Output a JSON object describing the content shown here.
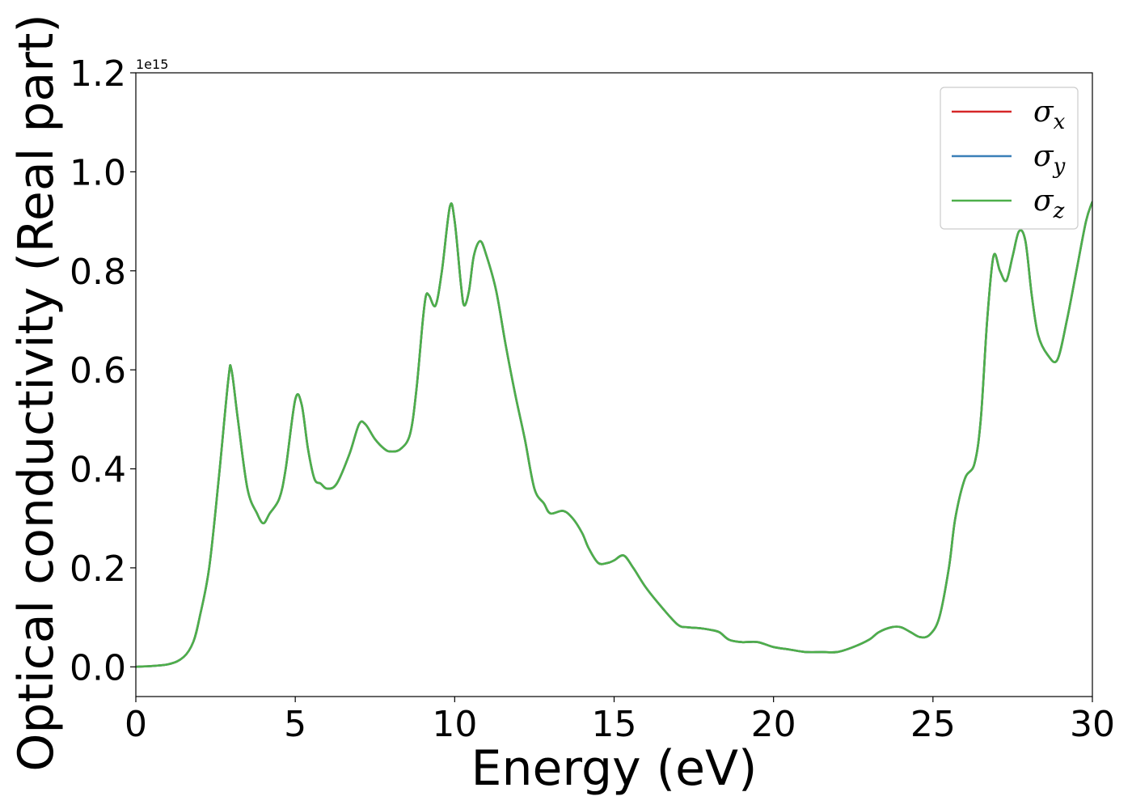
{
  "chart_data": {
    "type": "line",
    "xlabel": "Energy (eV)",
    "ylabel": "Optical conductivity (Real part)",
    "y_offset_label": "1e15",
    "xlim": [
      0,
      30
    ],
    "ylim": [
      -0.06,
      1.2
    ],
    "xticks": [
      0,
      5,
      10,
      15,
      20,
      25,
      30
    ],
    "xtick_labels": [
      "0",
      "5",
      "10",
      "15",
      "20",
      "25",
      "30"
    ],
    "yticks": [
      0.0,
      0.2,
      0.4,
      0.6,
      0.8,
      1.0,
      1.2
    ],
    "ytick_labels": [
      "0.0",
      "0.2",
      "0.4",
      "0.6",
      "0.8",
      "1.0",
      "1.2"
    ],
    "grid": false,
    "legend_position": "top-right",
    "series": [
      {
        "name": "σx",
        "symbol": "σ",
        "subscript": "x",
        "color": "#d62728",
        "x": [
          0,
          1,
          1.5,
          1.8,
          2.0,
          2.3,
          2.6,
          2.9,
          3.0,
          3.2,
          3.5,
          3.8,
          4.0,
          4.2,
          4.5,
          4.7,
          5.0,
          5.2,
          5.4,
          5.6,
          5.8,
          6.0,
          6.3,
          6.7,
          7.0,
          7.2,
          7.5,
          7.8,
          8.0,
          8.3,
          8.6,
          8.8,
          9.0,
          9.1,
          9.2,
          9.4,
          9.6,
          9.85,
          10.0,
          10.2,
          10.3,
          10.45,
          10.6,
          10.8,
          11.0,
          11.3,
          11.6,
          11.9,
          12.2,
          12.5,
          12.8,
          13.0,
          13.4,
          13.7,
          14.0,
          14.2,
          14.5,
          14.8,
          15.0,
          15.3,
          15.6,
          16.0,
          16.5,
          17.0,
          17.3,
          17.7,
          18.0,
          18.3,
          18.6,
          19.0,
          19.5,
          20.0,
          20.5,
          21.0,
          21.5,
          22.0,
          22.5,
          23.0,
          23.3,
          23.7,
          24.0,
          24.3,
          24.6,
          24.9,
          25.2,
          25.5,
          25.7,
          26.0,
          26.3,
          26.5,
          26.7,
          26.9,
          27.1,
          27.3,
          27.5,
          27.7,
          27.9,
          28.1,
          28.3,
          28.6,
          28.9,
          29.2,
          29.5,
          29.8,
          30.0
        ],
        "y": [
          0.0,
          0.005,
          0.02,
          0.05,
          0.1,
          0.2,
          0.38,
          0.58,
          0.6,
          0.5,
          0.36,
          0.31,
          0.29,
          0.31,
          0.34,
          0.4,
          0.54,
          0.53,
          0.44,
          0.38,
          0.37,
          0.36,
          0.37,
          0.43,
          0.49,
          0.49,
          0.46,
          0.44,
          0.435,
          0.44,
          0.47,
          0.56,
          0.7,
          0.75,
          0.75,
          0.73,
          0.8,
          0.93,
          0.9,
          0.77,
          0.73,
          0.76,
          0.83,
          0.86,
          0.83,
          0.76,
          0.65,
          0.55,
          0.46,
          0.36,
          0.33,
          0.31,
          0.315,
          0.3,
          0.27,
          0.24,
          0.21,
          0.21,
          0.215,
          0.225,
          0.2,
          0.16,
          0.12,
          0.085,
          0.08,
          0.078,
          0.075,
          0.07,
          0.055,
          0.05,
          0.05,
          0.04,
          0.035,
          0.03,
          0.03,
          0.03,
          0.04,
          0.055,
          0.07,
          0.08,
          0.08,
          0.07,
          0.06,
          0.065,
          0.1,
          0.2,
          0.3,
          0.38,
          0.41,
          0.5,
          0.7,
          0.83,
          0.8,
          0.78,
          0.83,
          0.88,
          0.86,
          0.75,
          0.67,
          0.63,
          0.62,
          0.7,
          0.8,
          0.9,
          0.94
        ]
      },
      {
        "name": "σy",
        "symbol": "σ",
        "subscript": "y",
        "color": "#3a7fb8",
        "x": [
          0,
          1,
          1.5,
          1.8,
          2.0,
          2.3,
          2.6,
          2.9,
          3.0,
          3.2,
          3.5,
          3.8,
          4.0,
          4.2,
          4.5,
          4.7,
          5.0,
          5.2,
          5.4,
          5.6,
          5.8,
          6.0,
          6.3,
          6.7,
          7.0,
          7.2,
          7.5,
          7.8,
          8.0,
          8.3,
          8.6,
          8.8,
          9.0,
          9.1,
          9.2,
          9.4,
          9.6,
          9.85,
          10.0,
          10.2,
          10.3,
          10.45,
          10.6,
          10.8,
          11.0,
          11.3,
          11.6,
          11.9,
          12.2,
          12.5,
          12.8,
          13.0,
          13.4,
          13.7,
          14.0,
          14.2,
          14.5,
          14.8,
          15.0,
          15.3,
          15.6,
          16.0,
          16.5,
          17.0,
          17.3,
          17.7,
          18.0,
          18.3,
          18.6,
          19.0,
          19.5,
          20.0,
          20.5,
          21.0,
          21.5,
          22.0,
          22.5,
          23.0,
          23.3,
          23.7,
          24.0,
          24.3,
          24.6,
          24.9,
          25.2,
          25.5,
          25.7,
          26.0,
          26.3,
          26.5,
          26.7,
          26.9,
          27.1,
          27.3,
          27.5,
          27.7,
          27.9,
          28.1,
          28.3,
          28.6,
          28.9,
          29.2,
          29.5,
          29.8,
          30.0
        ],
        "y": [
          0.0,
          0.005,
          0.02,
          0.05,
          0.1,
          0.2,
          0.38,
          0.58,
          0.6,
          0.5,
          0.36,
          0.31,
          0.29,
          0.31,
          0.34,
          0.4,
          0.54,
          0.53,
          0.44,
          0.38,
          0.37,
          0.36,
          0.37,
          0.43,
          0.49,
          0.49,
          0.46,
          0.44,
          0.435,
          0.44,
          0.47,
          0.56,
          0.7,
          0.75,
          0.75,
          0.73,
          0.8,
          0.93,
          0.9,
          0.77,
          0.73,
          0.76,
          0.83,
          0.86,
          0.83,
          0.76,
          0.65,
          0.55,
          0.46,
          0.36,
          0.33,
          0.31,
          0.315,
          0.3,
          0.27,
          0.24,
          0.21,
          0.21,
          0.215,
          0.225,
          0.2,
          0.16,
          0.12,
          0.085,
          0.08,
          0.078,
          0.075,
          0.07,
          0.055,
          0.05,
          0.05,
          0.04,
          0.035,
          0.03,
          0.03,
          0.03,
          0.04,
          0.055,
          0.07,
          0.08,
          0.08,
          0.07,
          0.06,
          0.065,
          0.1,
          0.2,
          0.3,
          0.38,
          0.41,
          0.5,
          0.7,
          0.83,
          0.8,
          0.78,
          0.83,
          0.88,
          0.86,
          0.75,
          0.67,
          0.63,
          0.62,
          0.7,
          0.8,
          0.9,
          0.94
        ]
      },
      {
        "name": "σz",
        "symbol": "σ",
        "subscript": "z",
        "color": "#4daf4a",
        "x": [
          0,
          1,
          1.5,
          1.8,
          2.0,
          2.3,
          2.6,
          2.9,
          3.0,
          3.2,
          3.5,
          3.8,
          4.0,
          4.2,
          4.5,
          4.7,
          5.0,
          5.2,
          5.4,
          5.6,
          5.8,
          6.0,
          6.3,
          6.7,
          7.0,
          7.2,
          7.5,
          7.8,
          8.0,
          8.3,
          8.6,
          8.8,
          9.0,
          9.1,
          9.2,
          9.4,
          9.6,
          9.85,
          10.0,
          10.2,
          10.3,
          10.45,
          10.6,
          10.8,
          11.0,
          11.3,
          11.6,
          11.9,
          12.2,
          12.5,
          12.8,
          13.0,
          13.4,
          13.7,
          14.0,
          14.2,
          14.5,
          14.8,
          15.0,
          15.3,
          15.6,
          16.0,
          16.5,
          17.0,
          17.3,
          17.7,
          18.0,
          18.3,
          18.6,
          19.0,
          19.5,
          20.0,
          20.5,
          21.0,
          21.5,
          22.0,
          22.5,
          23.0,
          23.3,
          23.7,
          24.0,
          24.3,
          24.6,
          24.9,
          25.2,
          25.5,
          25.7,
          26.0,
          26.3,
          26.5,
          26.7,
          26.9,
          27.1,
          27.3,
          27.5,
          27.7,
          27.9,
          28.1,
          28.3,
          28.6,
          28.9,
          29.2,
          29.5,
          29.8,
          30.0
        ],
        "y": [
          0.0,
          0.005,
          0.02,
          0.05,
          0.1,
          0.2,
          0.38,
          0.58,
          0.6,
          0.5,
          0.36,
          0.31,
          0.29,
          0.31,
          0.34,
          0.4,
          0.54,
          0.53,
          0.44,
          0.38,
          0.37,
          0.36,
          0.37,
          0.43,
          0.49,
          0.49,
          0.46,
          0.44,
          0.435,
          0.44,
          0.47,
          0.56,
          0.7,
          0.75,
          0.75,
          0.73,
          0.8,
          0.93,
          0.9,
          0.77,
          0.73,
          0.76,
          0.83,
          0.86,
          0.83,
          0.76,
          0.65,
          0.55,
          0.46,
          0.36,
          0.33,
          0.31,
          0.315,
          0.3,
          0.27,
          0.24,
          0.21,
          0.21,
          0.215,
          0.225,
          0.2,
          0.16,
          0.12,
          0.085,
          0.08,
          0.078,
          0.075,
          0.07,
          0.055,
          0.05,
          0.05,
          0.04,
          0.035,
          0.03,
          0.03,
          0.03,
          0.04,
          0.055,
          0.07,
          0.08,
          0.08,
          0.07,
          0.06,
          0.065,
          0.1,
          0.2,
          0.3,
          0.38,
          0.41,
          0.5,
          0.7,
          0.83,
          0.8,
          0.78,
          0.83,
          0.88,
          0.86,
          0.75,
          0.67,
          0.63,
          0.62,
          0.7,
          0.8,
          0.9,
          0.94
        ]
      }
    ]
  }
}
